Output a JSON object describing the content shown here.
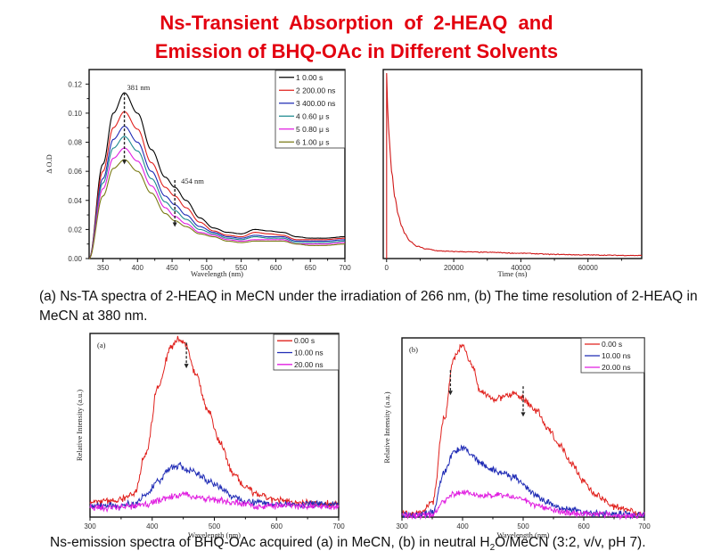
{
  "title": {
    "line1": "Ns-Transient  Absorption  of  2-HEAQ  and",
    "line2": "Emission of BHQ-OAc in Different Solvents",
    "color": "#e3000f"
  },
  "captions": {
    "top": "(a) Ns-TA spectra of 2-HEAQ in MeCN under the irradiation of 266 nm, (b) The time resolution of 2-HEAQ in MeCN at 380 nm.",
    "bottom_pre": "Ns-emission spectra of BHQ-OAc acquired (a) in MeCN, (b) in neutral H",
    "bottom_sub": "2",
    "bottom_post": "O/MeCN (3:2, v/v, pH 7)."
  },
  "chart_data": [
    {
      "id": "ta-spectra",
      "type": "line",
      "title": "",
      "xlabel": "Wavelength (nm)",
      "ylabel": "Δ O.D",
      "xlim": [
        330,
        700
      ],
      "ylim": [
        0,
        0.13
      ],
      "xticks": [
        350,
        400,
        450,
        500,
        550,
        600,
        650,
        700
      ],
      "yticks": [
        0.0,
        0.02,
        0.04,
        0.06,
        0.08,
        0.1,
        0.12
      ],
      "ytick_labels": [
        "0.00",
        "0.02",
        "0.04",
        "0.06",
        "0.08",
        "0.10",
        "0.12"
      ],
      "legend_position": "top-right",
      "annotations": [
        {
          "text": "381 nm",
          "x": 381
        },
        {
          "text": "454 nm",
          "x": 454
        }
      ],
      "x": [
        330,
        350,
        365,
        381,
        400,
        420,
        440,
        454,
        470,
        490,
        510,
        530,
        550,
        570,
        590,
        610,
        630,
        650,
        670,
        700
      ],
      "series": [
        {
          "name": "1 0.00 s",
          "color": "#000000",
          "values": [
            0.0,
            0.065,
            0.1,
            0.114,
            0.1,
            0.075,
            0.056,
            0.049,
            0.04,
            0.028,
            0.021,
            0.018,
            0.017,
            0.02,
            0.019,
            0.018,
            0.015,
            0.014,
            0.014,
            0.015
          ]
        },
        {
          "name": "2 200.00 ns",
          "color": "#e0201c",
          "values": [
            0.0,
            0.06,
            0.09,
            0.101,
            0.089,
            0.066,
            0.049,
            0.043,
            0.035,
            0.025,
            0.019,
            0.016,
            0.015,
            0.018,
            0.017,
            0.016,
            0.013,
            0.013,
            0.013,
            0.014
          ]
        },
        {
          "name": "3 400.00 ns",
          "color": "#1f2bb5",
          "values": [
            0.0,
            0.055,
            0.082,
            0.091,
            0.08,
            0.06,
            0.043,
            0.037,
            0.03,
            0.022,
            0.018,
            0.015,
            0.014,
            0.016,
            0.015,
            0.015,
            0.012,
            0.012,
            0.012,
            0.013
          ]
        },
        {
          "name": "4 0.60 μ s",
          "color": "#1d8a8f",
          "values": [
            0.0,
            0.052,
            0.076,
            0.084,
            0.074,
            0.055,
            0.039,
            0.033,
            0.027,
            0.02,
            0.017,
            0.014,
            0.013,
            0.015,
            0.014,
            0.014,
            0.011,
            0.011,
            0.011,
            0.012
          ]
        },
        {
          "name": "5 0.80 μ s",
          "color": "#e01de0",
          "values": [
            0.0,
            0.048,
            0.069,
            0.076,
            0.067,
            0.05,
            0.035,
            0.029,
            0.024,
            0.018,
            0.016,
            0.013,
            0.012,
            0.013,
            0.013,
            0.013,
            0.01,
            0.01,
            0.01,
            0.011
          ]
        },
        {
          "name": "6 1.00 μ s",
          "color": "#7a7a14",
          "values": [
            0.0,
            0.043,
            0.062,
            0.068,
            0.06,
            0.045,
            0.031,
            0.026,
            0.022,
            0.017,
            0.015,
            0.012,
            0.011,
            0.012,
            0.012,
            0.012,
            0.01,
            0.009,
            0.009,
            0.01
          ]
        }
      ]
    },
    {
      "id": "decay-380nm",
      "type": "line",
      "title": "",
      "xlabel": "Time (ns)",
      "ylabel": "",
      "xlim": [
        -1000,
        76000
      ],
      "ylim": [
        0,
        1.0
      ],
      "xticks": [
        0,
        20000,
        40000,
        60000
      ],
      "xtick_labels": [
        "0",
        "20000",
        "40000",
        "60000"
      ],
      "yticks": [],
      "x": [
        0,
        300,
        800,
        1500,
        2500,
        3500,
        4500,
        5500,
        7000,
        9000,
        12000,
        16000,
        20000,
        30000,
        40000,
        50000,
        60000,
        70000,
        76000
      ],
      "series": [
        {
          "name": "380 nm",
          "color": "#d01818",
          "values": [
            0.98,
            0.8,
            0.62,
            0.46,
            0.32,
            0.23,
            0.17,
            0.13,
            0.09,
            0.065,
            0.05,
            0.04,
            0.037,
            0.033,
            0.028,
            0.022,
            0.019,
            0.017,
            0.016
          ]
        }
      ]
    },
    {
      "id": "emission-mecn",
      "type": "line",
      "title": "",
      "panel_label": "(a)",
      "xlabel": "Wavelength (nm)",
      "ylabel": "Relative Intensity (a.u.)",
      "xlim": [
        300,
        700
      ],
      "ylim": [
        0,
        1.0
      ],
      "xticks": [
        300,
        400,
        500,
        600,
        700
      ],
      "yticks": [],
      "legend_position": "top-right",
      "x": [
        300,
        340,
        370,
        390,
        410,
        430,
        443,
        455,
        470,
        490,
        510,
        530,
        550,
        570,
        600,
        640,
        700
      ],
      "series": [
        {
          "name": "0.00 s",
          "color": "#e0201c",
          "values": [
            0.08,
            0.09,
            0.12,
            0.35,
            0.72,
            0.92,
            0.97,
            0.93,
            0.78,
            0.58,
            0.4,
            0.24,
            0.16,
            0.12,
            0.09,
            0.08,
            0.07
          ]
        },
        {
          "name": "10.00 ns",
          "color": "#1f2bb5",
          "values": [
            0.06,
            0.06,
            0.07,
            0.12,
            0.2,
            0.27,
            0.28,
            0.26,
            0.24,
            0.2,
            0.16,
            0.11,
            0.09,
            0.08,
            0.07,
            0.07,
            0.07
          ]
        },
        {
          "name": "20.00 ns",
          "color": "#e01de0",
          "values": [
            0.05,
            0.05,
            0.06,
            0.07,
            0.09,
            0.11,
            0.12,
            0.12,
            0.11,
            0.1,
            0.09,
            0.08,
            0.07,
            0.06,
            0.06,
            0.06,
            0.06
          ]
        }
      ]
    },
    {
      "id": "emission-h2o-mecn",
      "type": "line",
      "title": "",
      "panel_label": "(b)",
      "xlabel": "Wavelength (nm)",
      "ylabel": "Relative Intensity (a.u.)",
      "xlim": [
        300,
        700
      ],
      "ylim": [
        0,
        1.0
      ],
      "xticks": [
        300,
        400,
        500,
        600,
        700
      ],
      "yticks": [],
      "legend_position": "top-right",
      "x": [
        300,
        330,
        350,
        370,
        385,
        400,
        415,
        430,
        450,
        470,
        485,
        500,
        520,
        540,
        560,
        580,
        600,
        620,
        650,
        700
      ],
      "series": [
        {
          "name": "0.00 s",
          "color": "#e0201c",
          "values": [
            0.02,
            0.02,
            0.08,
            0.55,
            0.88,
            0.96,
            0.85,
            0.7,
            0.66,
            0.67,
            0.69,
            0.66,
            0.6,
            0.5,
            0.4,
            0.3,
            0.2,
            0.12,
            0.06,
            0.02
          ]
        },
        {
          "name": "10.00 ns",
          "color": "#1f2bb5",
          "values": [
            0.01,
            0.01,
            0.03,
            0.25,
            0.36,
            0.39,
            0.35,
            0.3,
            0.26,
            0.24,
            0.22,
            0.18,
            0.12,
            0.08,
            0.05,
            0.04,
            0.03,
            0.02,
            0.02,
            0.01
          ]
        },
        {
          "name": "20.00 ns",
          "color": "#e01de0",
          "values": [
            0.01,
            0.01,
            0.01,
            0.09,
            0.13,
            0.14,
            0.13,
            0.12,
            0.12,
            0.12,
            0.11,
            0.1,
            0.07,
            0.05,
            0.03,
            0.02,
            0.02,
            0.02,
            0.01,
            0.01
          ]
        }
      ]
    }
  ]
}
